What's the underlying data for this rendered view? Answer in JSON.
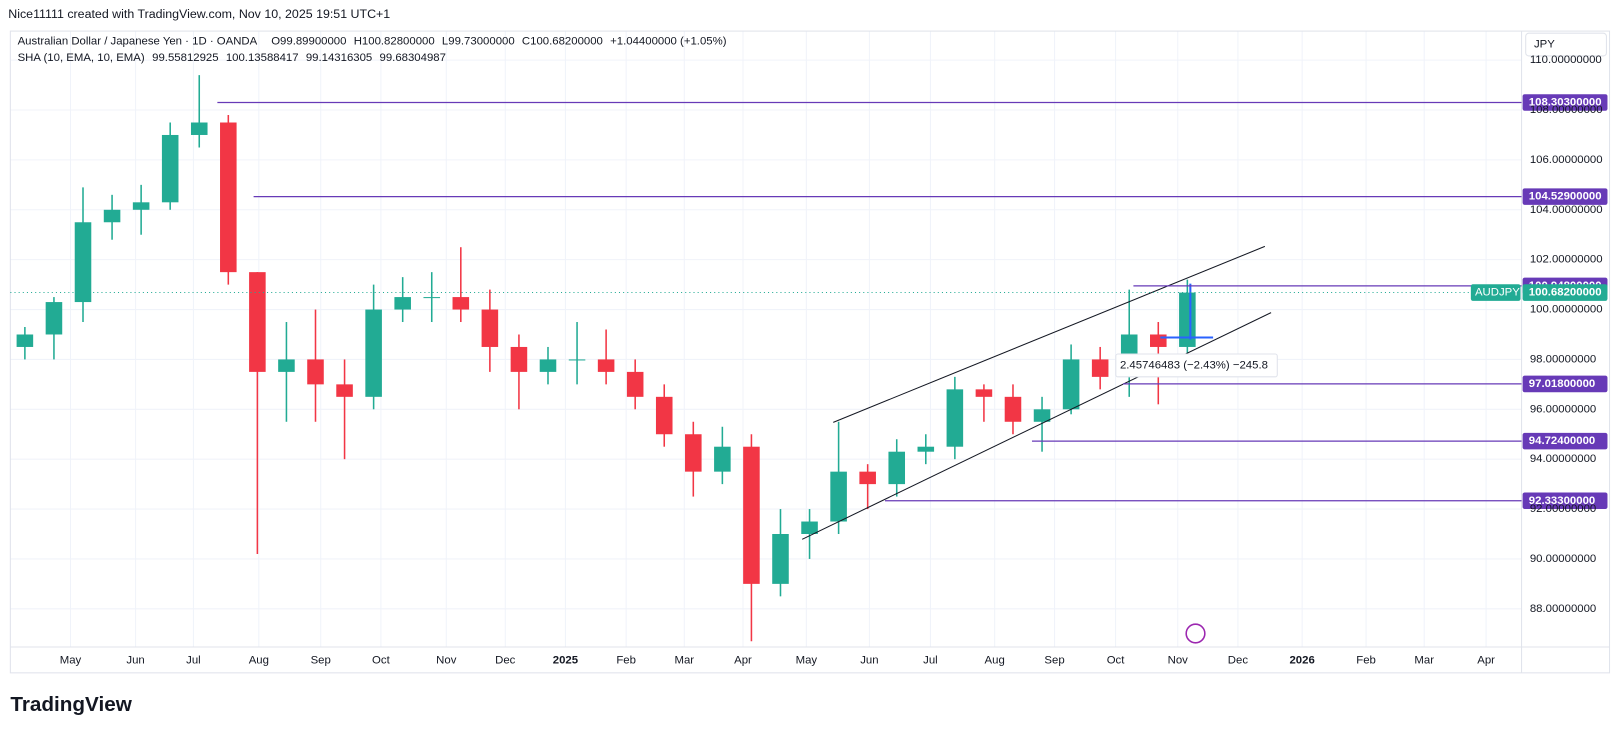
{
  "header": {
    "credit": "Nice11111 created with TradingView.com, Nov 10, 2025 19:51 UTC+1",
    "symbol_title": "Australian Dollar / Japanese Yen · 1D · OANDA",
    "ohlc": [
      "O99.89900000",
      "H100.82800000",
      "L99.73000000",
      "C100.68200000",
      "+1.04400000 (+1.05%)"
    ],
    "indicator": "SHA (10, EMA, 10, EMA)",
    "indicator_values": [
      "99.55812925",
      "100.13588417",
      "99.14316305",
      "99.68304987"
    ],
    "currency": "JPY"
  },
  "measure_label": "2.45746483 (−2.43%) −245.8",
  "footer": {
    "logo": "TradingView"
  },
  "chart_data": {
    "type": "candlestick",
    "categories": [
      null,
      null,
      null,
      null,
      null,
      null,
      null,
      null,
      null,
      null,
      null,
      null,
      null,
      null,
      null,
      null,
      null,
      null,
      null,
      null,
      null,
      null,
      null,
      null,
      null,
      null,
      null,
      null,
      null,
      null,
      null,
      null,
      null,
      null,
      null,
      null,
      null,
      null,
      null,
      null,
      null
    ],
    "open": [
      98.5,
      99.0,
      100.3,
      103.5,
      104.0,
      104.3,
      107.0,
      107.5,
      101.5,
      97.5,
      98.0,
      97.0,
      96.5,
      100.0,
      100.5,
      100.5,
      100.0,
      98.5,
      97.5,
      98.0,
      98.0,
      97.5,
      96.5,
      95.0,
      93.5,
      94.5,
      89.0,
      91.0,
      91.5,
      93.5,
      93.0,
      94.3,
      94.5,
      96.8,
      96.5,
      95.5,
      96.0,
      98.0,
      97.3,
      99.0,
      98.5
    ],
    "high": [
      99.3,
      100.5,
      104.9,
      104.6,
      105.0,
      107.5,
      109.4,
      107.8,
      101.5,
      99.5,
      100.0,
      98.0,
      101.0,
      101.3,
      101.5,
      102.5,
      100.8,
      99.0,
      98.5,
      99.5,
      99.2,
      98.0,
      97.0,
      95.5,
      95.3,
      95.0,
      92.0,
      92.0,
      95.5,
      93.8,
      94.8,
      95.0,
      97.3,
      97.0,
      97.0,
      96.5,
      98.6,
      98.5,
      100.8,
      99.5,
      101.2
    ],
    "low": [
      98.0,
      98.0,
      99.5,
      102.8,
      103.0,
      104.0,
      106.5,
      101.0,
      90.2,
      95.5,
      95.5,
      94.0,
      96.0,
      99.5,
      99.5,
      99.5,
      97.5,
      96.0,
      97.0,
      97.0,
      97.0,
      96.0,
      94.5,
      92.5,
      93.0,
      86.7,
      88.5,
      90.0,
      91.0,
      92.0,
      92.5,
      93.8,
      94.0,
      95.5,
      95.0,
      94.3,
      95.8,
      96.8,
      96.5,
      96.2,
      98.0
    ],
    "close": [
      99.0,
      100.3,
      103.5,
      104.0,
      104.3,
      107.0,
      107.5,
      101.5,
      97.5,
      98.0,
      97.0,
      96.5,
      100.0,
      100.5,
      100.5,
      100.0,
      98.5,
      97.5,
      98.0,
      98.0,
      97.5,
      96.5,
      95.0,
      93.5,
      94.5,
      89.0,
      91.0,
      91.5,
      93.5,
      93.0,
      94.3,
      94.5,
      96.8,
      96.5,
      95.5,
      96.0,
      98.0,
      97.3,
      99.0,
      98.5,
      100.68
    ],
    "up_color": "#22ab94",
    "down_color": "#f23645",
    "xlim": [
      0,
      52
    ],
    "xticks": [
      {
        "value": 2.07,
        "label": "May"
      },
      {
        "value": 4.31,
        "label": "Jun"
      },
      {
        "value": 6.3,
        "label": "Jul"
      },
      {
        "value": 8.55,
        "label": "Aug"
      },
      {
        "value": 10.68,
        "label": "Sep"
      },
      {
        "value": 12.75,
        "label": "Oct"
      },
      {
        "value": 15.0,
        "label": "Nov"
      },
      {
        "value": 17.03,
        "label": "Dec"
      },
      {
        "value": 19.1,
        "label": "2025"
      },
      {
        "value": 21.19,
        "label": "Feb"
      },
      {
        "value": 23.19,
        "label": "Mar"
      },
      {
        "value": 25.21,
        "label": "Apr"
      },
      {
        "value": 27.39,
        "label": "May"
      },
      {
        "value": 29.56,
        "label": "Jun"
      },
      {
        "value": 31.66,
        "label": "Jul"
      },
      {
        "value": 33.87,
        "label": "Aug"
      },
      {
        "value": 35.93,
        "label": "Sep"
      },
      {
        "value": 38.03,
        "label": "Oct"
      },
      {
        "value": 40.17,
        "label": "Nov"
      },
      {
        "value": 42.24,
        "label": "Dec"
      },
      {
        "value": 44.45,
        "label": "2026"
      },
      {
        "value": 46.65,
        "label": "Feb"
      },
      {
        "value": 48.65,
        "label": "Mar"
      },
      {
        "value": 50.78,
        "label": "Apr"
      }
    ],
    "ylim": [
      86.47,
      109.92
    ],
    "yticks": [
      {
        "value": 88,
        "label": "88.00000000"
      },
      {
        "value": 90,
        "label": "90.00000000"
      },
      {
        "value": 92,
        "label": "92.00000000"
      },
      {
        "value": 94,
        "label": "94.00000000"
      },
      {
        "value": 96,
        "label": "96.00000000"
      },
      {
        "value": 98,
        "label": "98.00000000"
      },
      {
        "value": 100,
        "label": "100.00000000"
      },
      {
        "value": 102,
        "label": "102.00000000"
      },
      {
        "value": 104,
        "label": "104.00000000"
      },
      {
        "value": 106,
        "label": "106.00000000"
      },
      {
        "value": 108,
        "label": "108.00000000"
      },
      {
        "value": 110,
        "label": "110.00000000"
      }
    ],
    "grid": true,
    "levels": [
      {
        "value": 108.303,
        "label": "108.30300000"
      },
      {
        "value": 104.529,
        "label": "104.52900000"
      },
      {
        "value": 100.948,
        "label": "100.94800000"
      },
      {
        "value": 97.018,
        "label": "97.01800000"
      },
      {
        "value": 94.724,
        "label": "94.72400000"
      },
      {
        "value": 92.333,
        "label": "92.33300000"
      }
    ],
    "level_color": "#673ab7",
    "last_price": {
      "value": 100.682,
      "label": "100.68200000",
      "symbol": "AUDJPY"
    },
    "last_color": "#22ab94"
  }
}
